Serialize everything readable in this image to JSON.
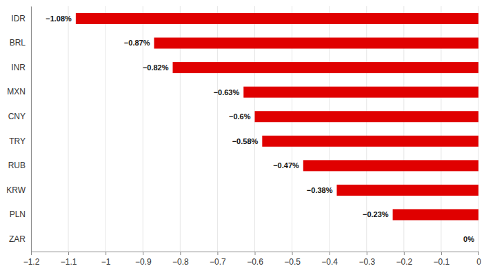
{
  "chart_data": {
    "type": "bar",
    "orientation": "horizontal",
    "categories": [
      "IDR",
      "BRL",
      "INR",
      "MXN",
      "CNY",
      "TRY",
      "RUB",
      "KRW",
      "PLN",
      "ZAR"
    ],
    "values": [
      -1.08,
      -0.87,
      -0.82,
      -0.63,
      -0.6,
      -0.58,
      -0.47,
      -0.38,
      -0.23,
      0
    ],
    "value_labels": [
      "−1.08%",
      "−0.87%",
      "−0.82%",
      "−0.63%",
      "−0.6%",
      "−0.58%",
      "−0.47%",
      "−0.38%",
      "−0.23%",
      "0%"
    ],
    "data_labels": true,
    "color": "#e00000",
    "xlim": [
      -1.2,
      0
    ],
    "xticks": [
      {
        "value": -1.2,
        "label": "−1.2"
      },
      {
        "value": -1.1,
        "label": "−1.1"
      },
      {
        "value": -1,
        "label": "−1"
      },
      {
        "value": -0.9,
        "label": "−0.9"
      },
      {
        "value": -0.8,
        "label": "−0.8"
      },
      {
        "value": -0.7,
        "label": "−0.7"
      },
      {
        "value": -0.6,
        "label": "−0.6"
      },
      {
        "value": -0.5,
        "label": "−0.5"
      },
      {
        "value": -0.4,
        "label": "−0.4"
      },
      {
        "value": -0.3,
        "label": "−0.3"
      },
      {
        "value": -0.2,
        "label": "−0.2"
      },
      {
        "value": -0.1,
        "label": "−0.1"
      },
      0
    ],
    "grid": true
  }
}
